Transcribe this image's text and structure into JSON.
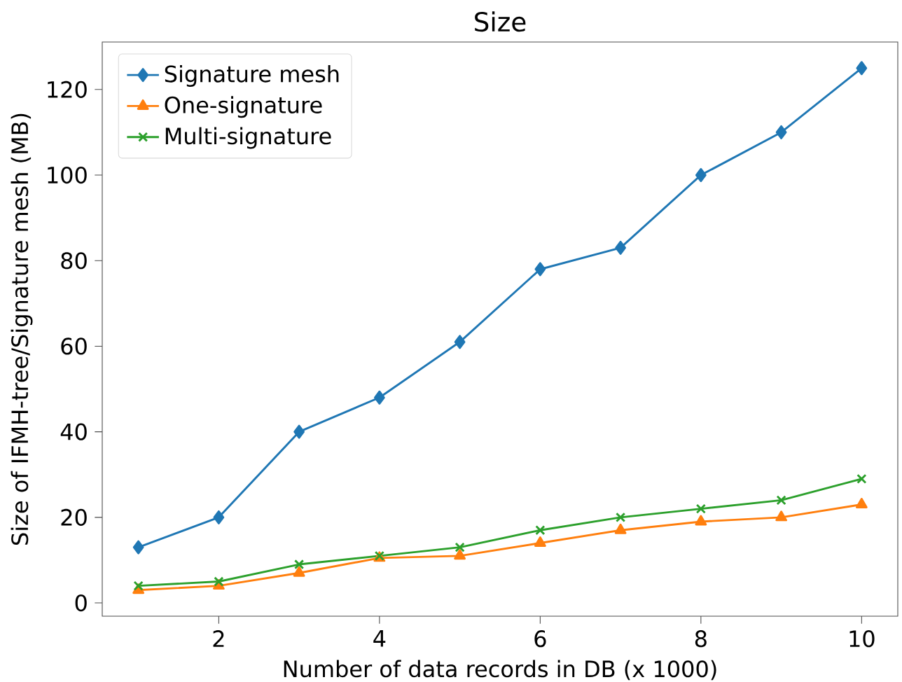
{
  "chart_data": {
    "type": "line",
    "title": "Size",
    "xlabel": "Number of data records in DB (x 1000)",
    "ylabel": "Size of IFMH-tree/Signature mesh (MB)",
    "x": [
      1,
      2,
      3,
      4,
      5,
      6,
      7,
      8,
      9,
      10
    ],
    "series": [
      {
        "name": "Signature mesh",
        "color": "#1f77b4",
        "marker": "diamond",
        "values": [
          13,
          20,
          40,
          48,
          61,
          78,
          83,
          100,
          110,
          125
        ]
      },
      {
        "name": "One-signature",
        "color": "#ff7f0e",
        "marker": "triangle",
        "values": [
          3,
          4,
          7,
          10.5,
          11,
          14,
          17,
          19,
          20,
          23
        ]
      },
      {
        "name": "Multi-signature",
        "color": "#2ca02c",
        "marker": "cross",
        "values": [
          4,
          5,
          9,
          11,
          13,
          17,
          20,
          22,
          24,
          29
        ]
      }
    ],
    "xlim": [
      0.55,
      10.45
    ],
    "ylim": [
      -3.1,
      131.1
    ],
    "xticks": [
      2,
      4,
      6,
      8,
      10
    ],
    "yticks": [
      0,
      20,
      40,
      60,
      80,
      100,
      120
    ],
    "legend": "top left",
    "grid": false,
    "line_style": "solid"
  }
}
